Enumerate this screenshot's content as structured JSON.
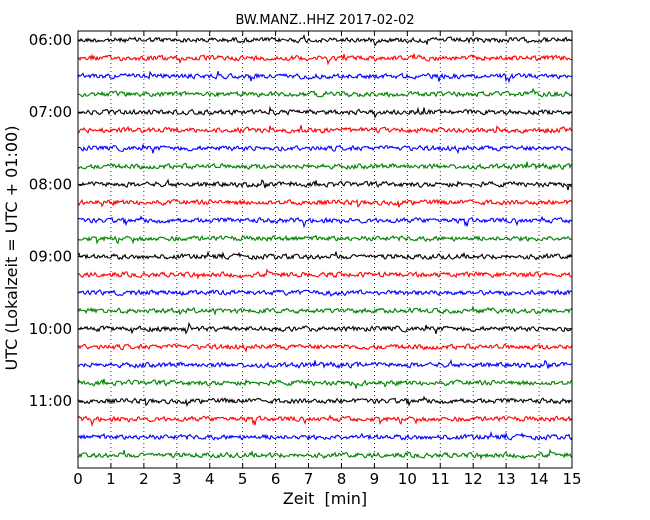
{
  "chart_data": {
    "type": "line",
    "title": "BW.MANZ..HHZ 2017-02-02",
    "xlabel": "Zeit  [min]",
    "ylabel": "UTC (Lokalzeit = UTC + 01:00)",
    "xlim": [
      0,
      15
    ],
    "x_ticks": [
      "0",
      "1",
      "2",
      "3",
      "4",
      "5",
      "6",
      "7",
      "8",
      "9",
      "10",
      "11",
      "12",
      "13",
      "14",
      "15"
    ],
    "y_tick_labels": [
      "06:00",
      "07:00",
      "08:00",
      "09:00",
      "10:00",
      "11:00"
    ],
    "rows_per_hour": 4,
    "grid": "vertical dotted",
    "series_colors": [
      "#000000",
      "#ff0000",
      "#0000ff",
      "#008000"
    ],
    "series": [
      {
        "start": "06:00",
        "color": "#000000"
      },
      {
        "start": "06:15",
        "color": "#ff0000"
      },
      {
        "start": "06:30",
        "color": "#0000ff"
      },
      {
        "start": "06:45",
        "color": "#008000"
      },
      {
        "start": "07:00",
        "color": "#000000"
      },
      {
        "start": "07:15",
        "color": "#ff0000"
      },
      {
        "start": "07:30",
        "color": "#0000ff"
      },
      {
        "start": "07:45",
        "color": "#008000"
      },
      {
        "start": "08:00",
        "color": "#000000"
      },
      {
        "start": "08:15",
        "color": "#ff0000"
      },
      {
        "start": "08:30",
        "color": "#0000ff"
      },
      {
        "start": "08:45",
        "color": "#008000"
      },
      {
        "start": "09:00",
        "color": "#000000"
      },
      {
        "start": "09:15",
        "color": "#ff0000"
      },
      {
        "start": "09:30",
        "color": "#0000ff"
      },
      {
        "start": "09:45",
        "color": "#008000"
      },
      {
        "start": "10:00",
        "color": "#000000"
      },
      {
        "start": "10:15",
        "color": "#ff0000"
      },
      {
        "start": "10:30",
        "color": "#0000ff"
      },
      {
        "start": "10:45",
        "color": "#008000"
      },
      {
        "start": "11:00",
        "color": "#000000"
      },
      {
        "start": "11:15",
        "color": "#ff0000"
      },
      {
        "start": "11:30",
        "color": "#0000ff"
      },
      {
        "start": "11:45",
        "color": "#008000"
      }
    ]
  }
}
